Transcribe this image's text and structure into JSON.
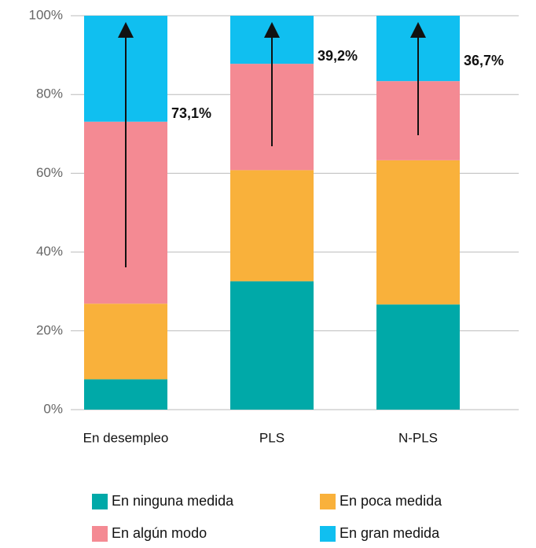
{
  "chart_data": {
    "type": "stacked_bar",
    "categories": [
      "En desempleo",
      "PLS",
      "N-PLS"
    ],
    "series": [
      {
        "name": "En ninguna medida",
        "color": "#00a9a8",
        "values": [
          7.7,
          32.6,
          26.7
        ]
      },
      {
        "name": "En poca medida",
        "color": "#f9b13b",
        "values": [
          19.2,
          28.2,
          36.6
        ]
      },
      {
        "name": "En algún modo",
        "color": "#f48a93",
        "values": [
          46.2,
          27.0,
          20.1
        ]
      },
      {
        "name": "En gran medida",
        "color": "#10bff0",
        "values": [
          26.9,
          12.2,
          16.6
        ]
      }
    ],
    "ylim": [
      0,
      100
    ],
    "yticks": [
      {
        "value": 0,
        "label": "0%"
      },
      {
        "value": 20,
        "label": "20%"
      },
      {
        "value": 40,
        "label": "40%"
      },
      {
        "value": 60,
        "label": "60%"
      },
      {
        "value": 80,
        "label": "80%"
      },
      {
        "value": 100,
        "label": "100%"
      }
    ],
    "annotations": [
      "73,1%",
      "39,2%",
      "36,7%"
    ],
    "grid": true
  }
}
